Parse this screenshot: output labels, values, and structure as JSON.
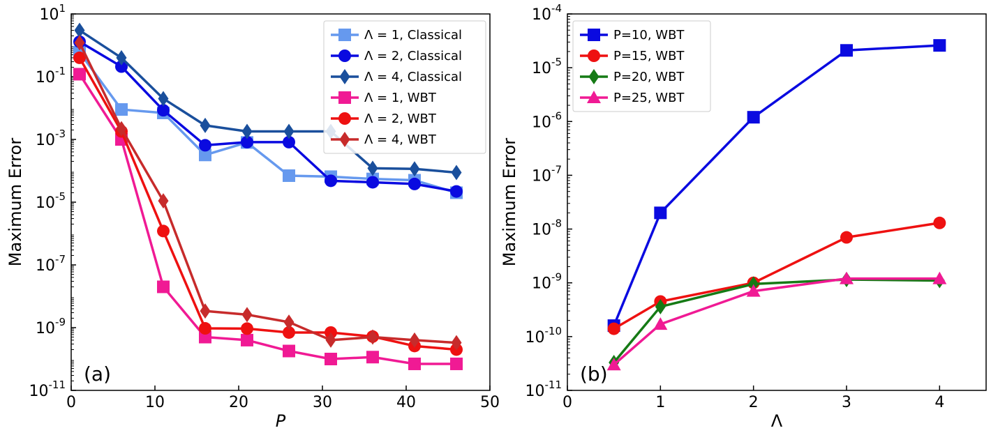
{
  "chart_data": [
    {
      "type": "line",
      "panel_label": "(a)",
      "xlabel": "P",
      "ylabel": "Maximum Error",
      "xlim": [
        0,
        50
      ],
      "ylim": [
        1e-11,
        10.0
      ],
      "yscale": "log",
      "xticks": [
        0,
        10,
        20,
        30,
        40,
        50
      ],
      "yticks": [
        {
          "base": "10",
          "exp": "1"
        },
        {
          "base": "10",
          "exp": "-1"
        },
        {
          "base": "10",
          "exp": "-3"
        },
        {
          "base": "10",
          "exp": "-5"
        },
        {
          "base": "10",
          "exp": "-7"
        },
        {
          "base": "10",
          "exp": "-9"
        },
        {
          "base": "10",
          "exp": "-11"
        }
      ],
      "legend_position": "top-right",
      "grid": false,
      "series": [
        {
          "name": "Λ = 1, Classical",
          "color": "#6699ee",
          "marker": "square",
          "x": [
            1,
            6,
            11,
            16,
            21,
            26,
            31,
            36,
            41,
            46
          ],
          "y": [
            0.6,
            0.009,
            0.007,
            0.00032,
            0.0008,
            7e-05,
            6.5e-05,
            5.5e-05,
            5e-05,
            2e-05
          ]
        },
        {
          "name": "Λ = 2, Classical",
          "color": "#0a0ae0",
          "marker": "circle",
          "x": [
            1,
            6,
            11,
            16,
            21,
            26,
            31,
            36,
            41,
            46
          ],
          "y": [
            1.3,
            0.21,
            0.0085,
            0.00065,
            0.00082,
            0.00082,
            4.8e-05,
            4.3e-05,
            3.8e-05,
            2.2e-05
          ]
        },
        {
          "name": "Λ = 4, Classical",
          "color": "#1a4f9c",
          "marker": "diamond",
          "x": [
            1,
            6,
            11,
            16,
            21,
            26,
            31,
            36,
            41,
            46
          ],
          "y": [
            3.0,
            0.4,
            0.02,
            0.0028,
            0.0018,
            0.0018,
            0.0018,
            0.00012,
            0.000115,
            8.8e-05
          ]
        },
        {
          "name": "Λ = 1, WBT",
          "color": "#f01a94",
          "marker": "square",
          "x": [
            1,
            6,
            11,
            16,
            21,
            26,
            31,
            36,
            41,
            46
          ],
          "y": [
            0.12,
            0.001,
            2e-08,
            5e-10,
            4e-10,
            1.8e-10,
            1e-10,
            1.15e-10,
            7e-11,
            7e-11
          ]
        },
        {
          "name": "Λ = 2, WBT",
          "color": "#ee1111",
          "marker": "circle",
          "x": [
            1,
            6,
            11,
            16,
            21,
            26,
            31,
            36,
            41,
            46
          ],
          "y": [
            0.4,
            0.0018,
            1.2e-06,
            9.5e-10,
            9.3e-10,
            7e-10,
            7e-10,
            5.2e-10,
            2.6e-10,
            2e-10
          ]
        },
        {
          "name": "Λ = 4, WBT",
          "color": "#c72b2b",
          "marker": "diamond",
          "x": [
            1,
            6,
            11,
            16,
            21,
            26,
            31,
            36,
            41,
            46
          ],
          "y": [
            1.2,
            0.0022,
            1.1e-05,
            3.4e-09,
            2.6e-09,
            1.5e-09,
            4e-10,
            5e-10,
            4e-10,
            3.3e-10
          ]
        }
      ]
    },
    {
      "type": "line",
      "panel_label": "(b)",
      "xlabel": "Λ",
      "ylabel": "Maximum Error",
      "xlim": [
        0,
        4.5
      ],
      "ylim": [
        1e-11,
        0.0001
      ],
      "yscale": "log",
      "xticks": [
        0,
        1,
        2,
        3,
        4
      ],
      "yticks": [
        {
          "base": "10",
          "exp": "-4"
        },
        {
          "base": "10",
          "exp": "-5"
        },
        {
          "base": "10",
          "exp": "-6"
        },
        {
          "base": "10",
          "exp": "-7"
        },
        {
          "base": "10",
          "exp": "-8"
        },
        {
          "base": "10",
          "exp": "-9"
        },
        {
          "base": "10",
          "exp": "-10"
        },
        {
          "base": "10",
          "exp": "-11"
        }
      ],
      "legend_position": "top-left",
      "grid": false,
      "series": [
        {
          "name": "P=10, WBT",
          "color": "#0a0ae0",
          "marker": "square",
          "x": [
            0.5,
            1,
            2,
            3,
            4
          ],
          "y": [
            1.6e-10,
            2e-08,
            1.2e-06,
            2.1e-05,
            2.6e-05
          ]
        },
        {
          "name": "P=15, WBT",
          "color": "#ee1111",
          "marker": "circle",
          "x": [
            0.5,
            1,
            2,
            3,
            4
          ],
          "y": [
            1.4e-10,
            4.5e-10,
            1e-09,
            7e-09,
            1.3e-08
          ]
        },
        {
          "name": "P=20, WBT",
          "color": "#157a15",
          "marker": "diamond",
          "x": [
            0.5,
            1,
            2,
            3,
            4
          ],
          "y": [
            3.3e-11,
            3.6e-10,
            9.5e-10,
            1.15e-09,
            1.1e-09
          ]
        },
        {
          "name": "P=25, WBT",
          "color": "#f01a94",
          "marker": "triangle",
          "x": [
            0.5,
            1,
            2,
            3,
            4
          ],
          "y": [
            3e-11,
            1.7e-10,
            7e-10,
            1.2e-09,
            1.2e-09
          ]
        }
      ]
    }
  ]
}
